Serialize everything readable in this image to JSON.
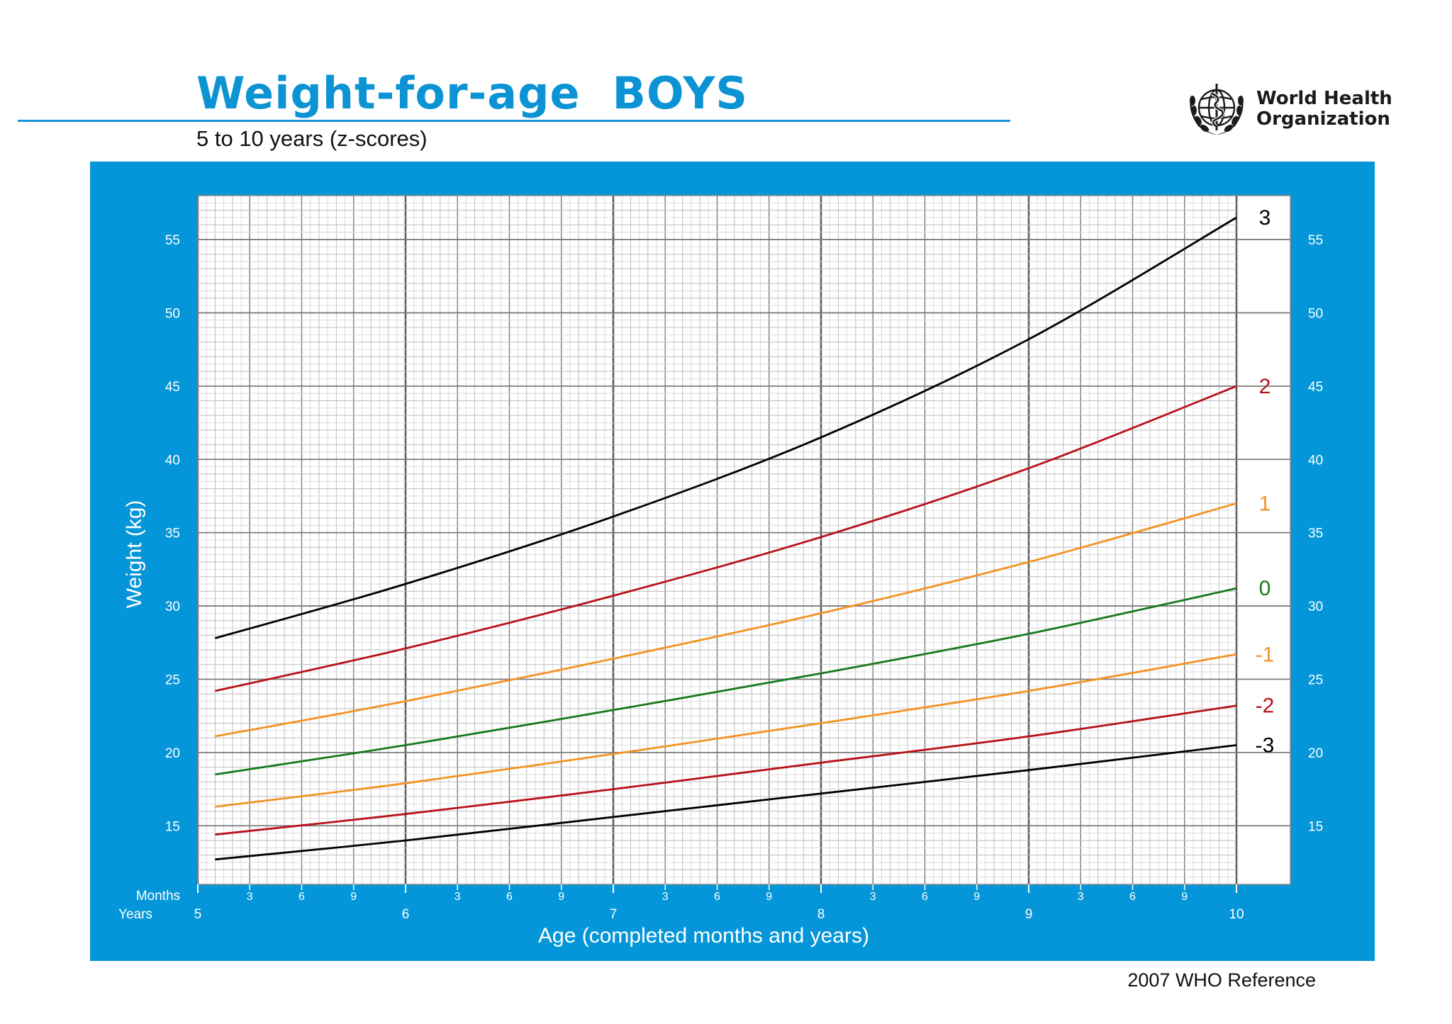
{
  "header": {
    "title": "Weight-for-age  BOYS",
    "subtitle": "5 to 10 years (z-scores)",
    "org_line1": "World Health",
    "org_line2": "Organization",
    "footer": "2007 WHO Reference"
  },
  "colors": {
    "panel": "#0496d8",
    "title": "#0b93d4",
    "sd3": "#000000",
    "sd2": "#b8121b",
    "sd1": "#f39324",
    "sd0": "#177a1e"
  },
  "chart_data": {
    "type": "line",
    "title": "Weight-for-age  BOYS",
    "subtitle": "5 to 10 years (z-scores)",
    "xlabel": "Age (completed months and years)",
    "ylabel": "Weight (kg)",
    "x_unit": "months",
    "xlim": [
      60,
      120
    ],
    "ylim": [
      11,
      58
    ],
    "grid": true,
    "months_label": "Months",
    "years_label": "Years",
    "year_ticks": [
      {
        "month": 60,
        "label": "5"
      },
      {
        "month": 72,
        "label": "6"
      },
      {
        "month": 84,
        "label": "7"
      },
      {
        "month": 96,
        "label": "8"
      },
      {
        "month": 108,
        "label": "9"
      },
      {
        "month": 120,
        "label": "10"
      }
    ],
    "month_ticks": [
      {
        "month": 63,
        "label": "3"
      },
      {
        "month": 66,
        "label": "6"
      },
      {
        "month": 69,
        "label": "9"
      },
      {
        "month": 75,
        "label": "3"
      },
      {
        "month": 78,
        "label": "6"
      },
      {
        "month": 81,
        "label": "9"
      },
      {
        "month": 87,
        "label": "3"
      },
      {
        "month": 90,
        "label": "6"
      },
      {
        "month": 93,
        "label": "9"
      },
      {
        "month": 99,
        "label": "3"
      },
      {
        "month": 102,
        "label": "6"
      },
      {
        "month": 105,
        "label": "9"
      },
      {
        "month": 111,
        "label": "3"
      },
      {
        "month": 114,
        "label": "6"
      },
      {
        "month": 117,
        "label": "9"
      }
    ],
    "y_ticks": [
      {
        "value": 15,
        "label": "15"
      },
      {
        "value": 20,
        "label": "20"
      },
      {
        "value": 25,
        "label": "25"
      },
      {
        "value": 30,
        "label": "30"
      },
      {
        "value": 35,
        "label": "35"
      },
      {
        "value": 40,
        "label": "40"
      },
      {
        "value": 45,
        "label": "45"
      },
      {
        "value": 50,
        "label": "50"
      },
      {
        "value": 55,
        "label": "55"
      }
    ],
    "x": [
      61,
      72,
      84,
      96,
      108,
      120
    ],
    "series": [
      {
        "name": "3",
        "color": "#000000",
        "values": [
          27.8,
          31.5,
          36.1,
          41.5,
          48.2,
          56.5
        ]
      },
      {
        "name": "2",
        "color": "#b8121b",
        "values": [
          24.2,
          27.1,
          30.7,
          34.7,
          39.4,
          45.0
        ]
      },
      {
        "name": "1",
        "color": "#f39324",
        "values": [
          21.1,
          23.5,
          26.4,
          29.5,
          33.0,
          37.0
        ]
      },
      {
        "name": "0",
        "color": "#177a1e",
        "values": [
          18.5,
          20.5,
          22.9,
          25.4,
          28.1,
          31.2
        ]
      },
      {
        "name": "-1",
        "color": "#f39324",
        "values": [
          16.3,
          17.9,
          19.9,
          22.0,
          24.2,
          26.7
        ]
      },
      {
        "name": "-2",
        "color": "#b8121b",
        "values": [
          14.4,
          15.8,
          17.5,
          19.3,
          21.1,
          23.2
        ]
      },
      {
        "name": "-3",
        "color": "#000000",
        "values": [
          12.7,
          14.0,
          15.6,
          17.2,
          18.8,
          20.5
        ]
      }
    ]
  }
}
